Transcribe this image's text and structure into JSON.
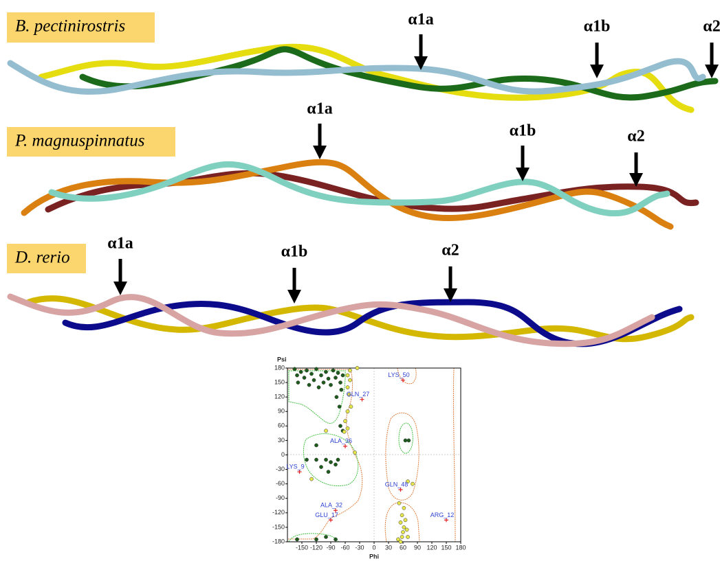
{
  "panels": [
    {
      "species": "B. pectinirostris",
      "arrows": [
        "α1a",
        "α1b",
        "α2"
      ]
    },
    {
      "species": "P. magnuspinnatus",
      "arrows": [
        "α1a",
        "α1b",
        "α2"
      ]
    },
    {
      "species": "D. rerio",
      "arrows": [
        "α1a",
        "α1b",
        "α2"
      ]
    }
  ],
  "chart_data": {
    "type": "scatter",
    "xlabel": "Phi",
    "ylabel": "Psi",
    "xlim": [
      -180,
      180
    ],
    "ylim": [
      -180,
      180
    ],
    "xticks": [
      -150,
      -120,
      -90,
      -60,
      -30,
      0,
      30,
      60,
      90,
      120,
      150,
      180
    ],
    "yticks": [
      180,
      150,
      120,
      90,
      60,
      30,
      0,
      -30,
      -60,
      -90,
      -120,
      -150,
      -180
    ],
    "series": [
      {
        "color": "#1e5c1e",
        "marker": "circle",
        "x": [
          -165,
          -160,
          -158,
          -152,
          -145,
          -140,
          -135,
          -130,
          -125,
          -120,
          -115,
          -110,
          -105,
          -100,
          -95,
          -90,
          -85,
          -80,
          -75,
          -70,
          -68,
          -65,
          -78,
          -72,
          -70,
          -65,
          -120,
          -140,
          -120,
          -100,
          -90,
          -80,
          -95,
          -110,
          -75,
          65,
          72,
          -160,
          -120,
          -100,
          -80
        ],
        "values": [
          178,
          165,
          150,
          172,
          160,
          175,
          145,
          168,
          155,
          178,
          140,
          165,
          150,
          172,
          158,
          145,
          175,
          160,
          170,
          150,
          135,
          165,
          120,
          100,
          60,
          50,
          20,
          -10,
          -10,
          -10,
          -15,
          -20,
          -35,
          -25,
          -10,
          30,
          30,
          -175,
          -175,
          -170,
          -175
        ]
      },
      {
        "color": "#e6e64a",
        "marker": "circle",
        "x": [
          -55,
          -50,
          -55,
          -52,
          -48,
          -55,
          -60,
          -55,
          -62,
          -100,
          -130,
          -40,
          55,
          58,
          60,
          62,
          55,
          65,
          58,
          62,
          52,
          70,
          68,
          80,
          70,
          50,
          -50,
          -35
        ],
        "values": [
          165,
          155,
          140,
          125,
          100,
          90,
          70,
          55,
          48,
          50,
          -50,
          5,
          -180,
          -170,
          -160,
          -150,
          -140,
          -135,
          -125,
          -110,
          -100,
          -170,
          -155,
          -60,
          -55,
          -175,
          175,
          180
        ]
      },
      {
        "color": "#e02020",
        "marker": "plus",
        "x": [
          60,
          -25,
          -60,
          -155,
          55,
          -80,
          -90,
          150
        ],
        "values": [
          155,
          115,
          18,
          -35,
          -72,
          -115,
          -135,
          -135
        ],
        "labels": [
          "LYS_50",
          "GLN_27",
          "ALA_36",
          "LYS_9",
          "GLN_48",
          "ALA_32",
          "GLU_17",
          "ARG_12"
        ]
      }
    ]
  }
}
